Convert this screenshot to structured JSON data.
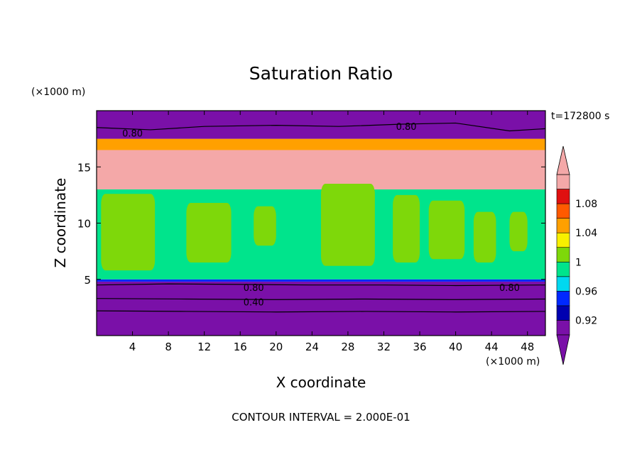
{
  "chart_data": {
    "type": "heatmap",
    "title": "Saturation Ratio",
    "xlabel": "X coordinate",
    "ylabel": "Z coordinate",
    "x_unit": "(×1000 m)",
    "y_unit": "(×1000 m)",
    "time_label": "t=172800 s",
    "footer": "CONTOUR INTERVAL = 2.000E-01",
    "xlim": [
      0,
      50
    ],
    "ylim": [
      0,
      20
    ],
    "x_ticks": [
      4,
      8,
      12,
      16,
      20,
      24,
      28,
      32,
      36,
      40,
      44,
      48
    ],
    "y_ticks": [
      5,
      10,
      15
    ],
    "colorbar": {
      "levels": [
        0.9,
        0.92,
        0.94,
        0.96,
        0.98,
        1.0,
        1.02,
        1.04,
        1.06,
        1.08,
        1.1
      ],
      "tick_labels": [
        "0.92",
        "0.96",
        "1",
        "1.04",
        "1.08"
      ],
      "tick_values": [
        0.92,
        0.96,
        1.0,
        1.04,
        1.08
      ],
      "colors": [
        "#7a10a8",
        "#0000b0",
        "#0028ff",
        "#00d8f0",
        "#00e48c",
        "#7ed80a",
        "#f8f000",
        "#ffa000",
        "#ff5a00",
        "#e01010",
        "#f4a8a8"
      ],
      "extend": "both"
    },
    "bands": [
      {
        "z_min": 0.0,
        "z_max": 4.8,
        "value": 0.6,
        "color": "#7a10a8"
      },
      {
        "z_min": 4.8,
        "z_max": 5.0,
        "value": 0.95,
        "color": "#0028ff"
      },
      {
        "z_min": 5.0,
        "z_max": 13.0,
        "value": 0.99,
        "color": "#00e48c"
      },
      {
        "z_min": 13.0,
        "z_max": 16.5,
        "value": 1.1,
        "color": "#f4a8a8"
      },
      {
        "z_min": 16.5,
        "z_max": 17.5,
        "value": 1.04,
        "color": "#ffa000"
      },
      {
        "z_min": 17.5,
        "z_max": 20.0,
        "value": 0.8,
        "color": "#7a10a8"
      }
    ],
    "green_patches": [
      {
        "x": [
          0.5,
          6.5
        ],
        "z": [
          5.8,
          12.6
        ]
      },
      {
        "x": [
          10,
          15
        ],
        "z": [
          6.5,
          11.8
        ]
      },
      {
        "x": [
          17.5,
          20
        ],
        "z": [
          8,
          11.5
        ]
      },
      {
        "x": [
          25,
          31
        ],
        "z": [
          6.2,
          13.5
        ]
      },
      {
        "x": [
          33,
          36
        ],
        "z": [
          6.5,
          12.5
        ]
      },
      {
        "x": [
          37,
          41
        ],
        "z": [
          6.8,
          12
        ]
      },
      {
        "x": [
          42,
          44.5
        ],
        "z": [
          6.5,
          11
        ]
      },
      {
        "x": [
          46,
          48
        ],
        "z": [
          7.5,
          11
        ]
      }
    ],
    "contour_lines": [
      {
        "label": "0.80",
        "x": [
          0,
          6,
          12,
          20,
          27,
          34,
          40,
          46,
          50
        ],
        "z": [
          18.5,
          18.3,
          18.6,
          18.7,
          18.6,
          18.8,
          18.9,
          18.2,
          18.4
        ]
      },
      {
        "label": "0.80",
        "x": [
          0,
          8,
          16,
          24,
          32,
          40,
          50
        ],
        "z": [
          4.5,
          4.6,
          4.55,
          4.5,
          4.5,
          4.45,
          4.5
        ]
      },
      {
        "label": "0.40",
        "x": [
          0,
          10,
          20,
          30,
          40,
          50
        ],
        "z": [
          3.3,
          3.25,
          3.2,
          3.25,
          3.2,
          3.25
        ]
      },
      {
        "label": "",
        "x": [
          0,
          10,
          20,
          30,
          40,
          50
        ],
        "z": [
          2.2,
          2.15,
          2.1,
          2.15,
          2.1,
          2.15
        ]
      }
    ],
    "contour_labels": [
      {
        "text": "0.80",
        "x": 4,
        "z": 18.0
      },
      {
        "text": "0.80",
        "x": 34.5,
        "z": 18.6
      },
      {
        "text": "0.80",
        "x": 17.5,
        "z": 4.3
      },
      {
        "text": "0.40",
        "x": 17.5,
        "z": 3.0
      },
      {
        "text": "0.80",
        "x": 46,
        "z": 4.3
      }
    ]
  }
}
